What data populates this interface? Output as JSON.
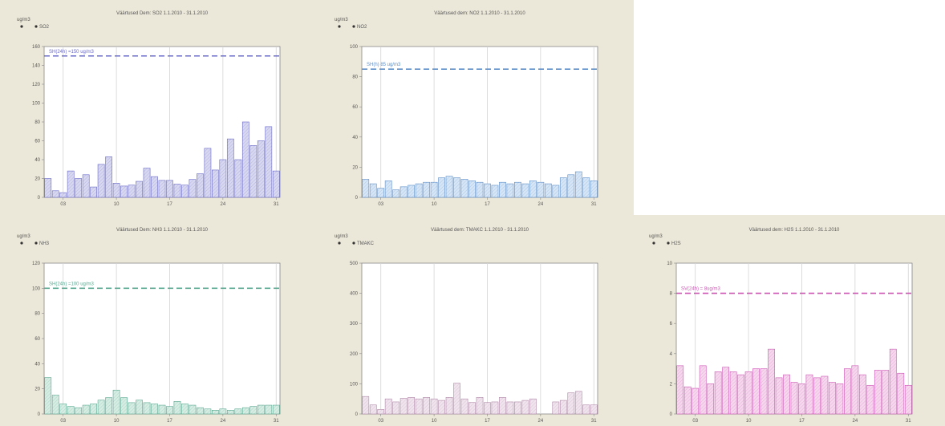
{
  "chart_data": [
    {
      "type": "bar",
      "title": "Väärtused Dem: SO2   1.1.2010 - 31.1.2010",
      "unit": "ug/m3",
      "legend": "SO2",
      "color": "#6a6ac8",
      "fill": "#d8d8f0",
      "ylim": [
        0,
        160
      ],
      "yticks": [
        "0",
        "20",
        "40",
        "60",
        "80",
        "100",
        "120",
        "140",
        "160"
      ],
      "xticks": [
        "03",
        "10",
        "17",
        "24",
        "31"
      ],
      "threshold": 150,
      "threshold_label": "SH(24h) =150 ug/m3",
      "x": [
        1,
        2,
        3,
        4,
        5,
        6,
        7,
        8,
        9,
        10,
        11,
        12,
        13,
        14,
        15,
        16,
        17,
        18,
        19,
        20,
        21,
        22,
        23,
        24,
        25,
        26,
        27,
        28,
        29,
        30,
        31
      ],
      "values": [
        20,
        7,
        5,
        28,
        20,
        24,
        11,
        35,
        43,
        15,
        12,
        13,
        17,
        31,
        22,
        18,
        18,
        14,
        13,
        19,
        25,
        52,
        29,
        40,
        62,
        40,
        80,
        55,
        60,
        75,
        28
      ]
    },
    {
      "type": "bar",
      "title": "Väärtused dem: NO2   1.1.2010 - 31.1.2010",
      "unit": "ug/m3",
      "legend": "NO2",
      "color": "#5f8fc8",
      "fill": "#d6e6f6",
      "ylim": [
        0,
        100
      ],
      "yticks": [
        "0",
        "20",
        "40",
        "60",
        "80",
        "100"
      ],
      "xticks": [
        "03",
        "10",
        "17",
        "24",
        "31"
      ],
      "threshold": 85,
      "threshold_label": "SH(h) 85 ug/m3",
      "x": [
        1,
        2,
        3,
        4,
        5,
        6,
        7,
        8,
        9,
        10,
        11,
        12,
        13,
        14,
        15,
        16,
        17,
        18,
        19,
        20,
        21,
        22,
        23,
        24,
        25,
        26,
        27,
        28,
        29,
        30,
        31
      ],
      "values": [
        12,
        9,
        6,
        11,
        5,
        7,
        8,
        9,
        10,
        10,
        13,
        14,
        13,
        12,
        11,
        10,
        9,
        8,
        10,
        9,
        10,
        9,
        11,
        10,
        9,
        8,
        13,
        15,
        17,
        13,
        11
      ]
    },
    {
      "type": "bar",
      "title": "Väärtused Dem: NH3   1.1.2010 - 31.1.2010",
      "unit": "ug/m3",
      "legend": "NH3",
      "color": "#5aa890",
      "fill": "#d6ede4",
      "ylim": [
        0,
        120
      ],
      "yticks": [
        "0",
        "20",
        "40",
        "60",
        "80",
        "100",
        "120"
      ],
      "xticks": [
        "03",
        "10",
        "17",
        "24",
        "31"
      ],
      "threshold": 100,
      "threshold_label": "SH(24h) =100 ug/m3",
      "x": [
        1,
        2,
        3,
        4,
        5,
        6,
        7,
        8,
        9,
        10,
        11,
        12,
        13,
        14,
        15,
        16,
        17,
        18,
        19,
        20,
        21,
        22,
        23,
        24,
        25,
        26,
        27,
        28,
        29,
        30,
        31
      ],
      "values": [
        29,
        15,
        8,
        6,
        5,
        7,
        8,
        11,
        13,
        19,
        13,
        9,
        11,
        9,
        8,
        7,
        6,
        10,
        8,
        7,
        5,
        4,
        3,
        4,
        3,
        4,
        5,
        6,
        7,
        7,
        7
      ]
    },
    {
      "type": "bar",
      "title": "Väärtused dem: TMAKC   1.1.2010 - 31.1.2010",
      "unit": "ug/m3",
      "legend": "TMAKC",
      "color": "#b08aa8",
      "fill": "#f0e4ee",
      "ylim": [
        0,
        500
      ],
      "yticks": [
        "0",
        "100",
        "200",
        "300",
        "400",
        "500"
      ],
      "xticks": [
        "03",
        "10",
        "17",
        "24",
        "31"
      ],
      "x": [
        1,
        2,
        3,
        4,
        5,
        6,
        7,
        8,
        9,
        10,
        11,
        12,
        13,
        14,
        15,
        16,
        17,
        18,
        19,
        20,
        21,
        22,
        23,
        24,
        25,
        26,
        27,
        28,
        29,
        30,
        31
      ],
      "values": [
        58,
        30,
        15,
        50,
        40,
        52,
        55,
        50,
        55,
        50,
        45,
        55,
        102,
        50,
        38,
        55,
        38,
        40,
        55,
        40,
        40,
        45,
        50,
        0,
        0,
        40,
        45,
        70,
        75,
        30,
        30
      ]
    },
    {
      "type": "bar",
      "title": "Väärtused dem: H2S   1.1.2010 - 31.1.2010",
      "unit": "ug/m3",
      "legend": "H2S",
      "color": "#cc55b4",
      "fill": "#f6d8ee",
      "ylim": [
        0,
        10
      ],
      "yticks": [
        "0",
        "2",
        "4",
        "6",
        "8",
        "10"
      ],
      "xticks": [
        "03",
        "10",
        "17",
        "24",
        "31"
      ],
      "threshold": 8,
      "threshold_label": "SV(24h) = 8ug/m3",
      "x": [
        1,
        2,
        3,
        4,
        5,
        6,
        7,
        8,
        9,
        10,
        11,
        12,
        13,
        14,
        15,
        16,
        17,
        18,
        19,
        20,
        21,
        22,
        23,
        24,
        25,
        26,
        27,
        28,
        29,
        30,
        31
      ],
      "values": [
        3.2,
        1.8,
        1.7,
        3.2,
        2.0,
        2.8,
        3.1,
        2.8,
        2.6,
        2.8,
        3.0,
        3.0,
        4.3,
        2.4,
        2.6,
        2.1,
        2.0,
        2.6,
        2.4,
        2.5,
        2.1,
        2.0,
        3.0,
        3.2,
        2.6,
        1.9,
        2.9,
        2.9,
        4.3,
        2.7,
        1.9
      ]
    }
  ]
}
